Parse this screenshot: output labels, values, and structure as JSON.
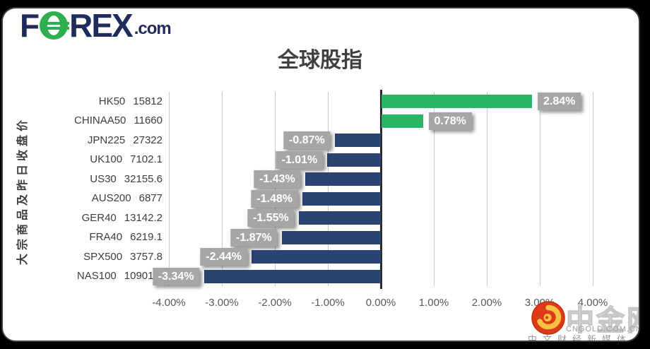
{
  "logo": {
    "part1": "F",
    "o_icon": "stylized-green-o",
    "part2": "REX",
    "suffix": ".com"
  },
  "title": "全球股指",
  "chart_data": {
    "type": "bar",
    "orientation": "horizontal",
    "title": "全球股指",
    "axis_title": "大宗商品及昨日收盘价",
    "categories": [
      "HK50",
      "CHINAA50",
      "JPN225",
      "UK100",
      "US30",
      "AUS200",
      "GER40",
      "FRA40",
      "SPX500",
      "NAS100"
    ],
    "close_prices": [
      "15812",
      "11660",
      "27322",
      "7102.1",
      "32155.6",
      "6877",
      "13142.2",
      "6219.1",
      "3757.8",
      "10901.6"
    ],
    "values": [
      2.84,
      0.78,
      -0.87,
      -1.01,
      -1.43,
      -1.48,
      -1.55,
      -1.87,
      -2.44,
      -3.34
    ],
    "labels": [
      "2.84%",
      "0.78%",
      "-0.87%",
      "-1.01%",
      "-1.43%",
      "-1.48%",
      "-1.55%",
      "-1.87%",
      "-2.44%",
      "-3.34%"
    ],
    "x_ticks": [
      "-4.00%",
      "-3.00%",
      "-2.00%",
      "-1.00%",
      "0.00%",
      "1.00%",
      "2.00%",
      "3.00%",
      "4.00%"
    ],
    "x_tick_values": [
      -4,
      -3,
      -2,
      -1,
      0,
      1,
      2,
      3,
      4
    ],
    "xlim": [
      -4,
      4
    ],
    "grid": true,
    "legend": false,
    "positive_color": "#2bb566",
    "negative_color": "#2b4370",
    "label_bg": "#a6a6a6"
  },
  "watermark": {
    "logo_icon": "cngold-red-gold-swirl",
    "site_name": "中金网",
    "domain": "CNGOLD.COM.CN",
    "tagline": "中文财经新媒体"
  }
}
